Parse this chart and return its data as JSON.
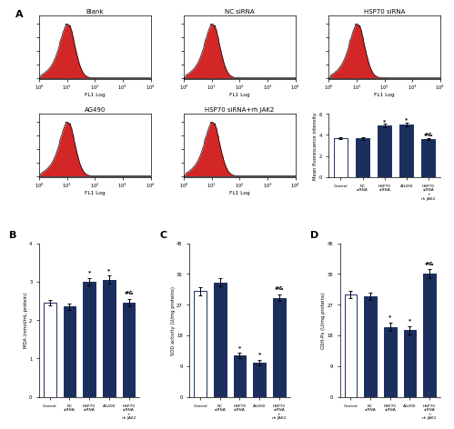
{
  "panel_A_bar": {
    "categories": [
      "Control",
      "NC\nsiRNA",
      "HSP70\nsiRNA",
      "AG490",
      "HSP70\nsiRNA\n+\nrh JAK2"
    ],
    "values": [
      3.7,
      3.65,
      4.9,
      5.0,
      3.6
    ],
    "errors": [
      0.1,
      0.1,
      0.15,
      0.15,
      0.12
    ],
    "ylabel": "Mean fluorescence intensity",
    "ylim": [
      0,
      6
    ],
    "yticks": [
      0,
      2,
      4,
      6
    ],
    "bar_colors": [
      "#ffffff",
      "#1a2f5e",
      "#1a2f5e",
      "#1a2f5e",
      "#1a2f5e"
    ],
    "bar_edge_colors": [
      "#1a2f5e",
      "#1a2f5e",
      "#1a2f5e",
      "#1a2f5e",
      "#1a2f5e"
    ],
    "annotations": [
      "",
      "",
      "*",
      "*",
      "#&"
    ]
  },
  "panel_B": {
    "categories": [
      "Control",
      "NC\nsiRNA",
      "HSP70\nsiRNA",
      "AG490",
      "HSP70\nsiRNA\n+\nrh JAK2"
    ],
    "values": [
      2.45,
      2.35,
      3.0,
      3.05,
      2.45
    ],
    "errors": [
      0.08,
      0.08,
      0.1,
      0.1,
      0.09
    ],
    "ylabel": "MDA (nmol/mL protein)",
    "ylim": [
      0,
      4
    ],
    "yticks": [
      0,
      1,
      2,
      3,
      4
    ],
    "bar_colors": [
      "#ffffff",
      "#1a2f5e",
      "#1a2f5e",
      "#1a2f5e",
      "#1a2f5e"
    ],
    "bar_edge_colors": [
      "#1a2f5e",
      "#1a2f5e",
      "#1a2f5e",
      "#1a2f5e",
      "#1a2f5e"
    ],
    "annotations": [
      "",
      "",
      "*",
      "*",
      "#&"
    ],
    "label": "B"
  },
  "panel_C": {
    "categories": [
      "Control",
      "NC\nsiRNA",
      "HSP70\nsiRNA",
      "AG490",
      "HSP70\nsiRNA\n+\nrh JAK2"
    ],
    "values": [
      31.0,
      33.5,
      12.0,
      10.0,
      29.0
    ],
    "errors": [
      1.2,
      1.2,
      0.8,
      0.8,
      1.0
    ],
    "ylabel": "SOD activity (U/mg proteins)",
    "ylim": [
      0,
      45
    ],
    "yticks": [
      0,
      9,
      18,
      27,
      36,
      45
    ],
    "bar_colors": [
      "#ffffff",
      "#1a2f5e",
      "#1a2f5e",
      "#1a2f5e",
      "#1a2f5e"
    ],
    "bar_edge_colors": [
      "#1a2f5e",
      "#1a2f5e",
      "#1a2f5e",
      "#1a2f5e",
      "#1a2f5e"
    ],
    "annotations": [
      "",
      "",
      "*",
      "*",
      "#&"
    ],
    "label": "C"
  },
  "panel_D": {
    "categories": [
      "Control",
      "NC\nsiRNA",
      "HSP70\nsiRNA",
      "AG490",
      "HSP70\nsiRNA\n+\nrh JAK2"
    ],
    "values": [
      30.0,
      29.5,
      20.5,
      19.5,
      36.0
    ],
    "errors": [
      1.0,
      1.0,
      1.2,
      1.2,
      1.3
    ],
    "ylabel": "GSH-Px (U/mg proteins)",
    "ylim": [
      0,
      45
    ],
    "yticks": [
      0,
      9,
      18,
      27,
      36,
      45
    ],
    "bar_colors": [
      "#ffffff",
      "#1a2f5e",
      "#1a2f5e",
      "#1a2f5e",
      "#1a2f5e"
    ],
    "bar_edge_colors": [
      "#1a2f5e",
      "#1a2f5e",
      "#1a2f5e",
      "#1a2f5e",
      "#1a2f5e"
    ],
    "annotations": [
      "",
      "",
      "*",
      "*",
      "#&"
    ],
    "label": "D"
  },
  "flow_titles": [
    "Blank",
    "NC siRNA",
    "HSP70 siRNA",
    "AG490",
    "HSP70 siRNA+rh JAK2"
  ],
  "panel_label_A": "A",
  "background_color": "#ffffff",
  "dark_blue": "#1a2f5e",
  "hist_fill_color": "#cc0000",
  "hist_line_color": "#000000"
}
